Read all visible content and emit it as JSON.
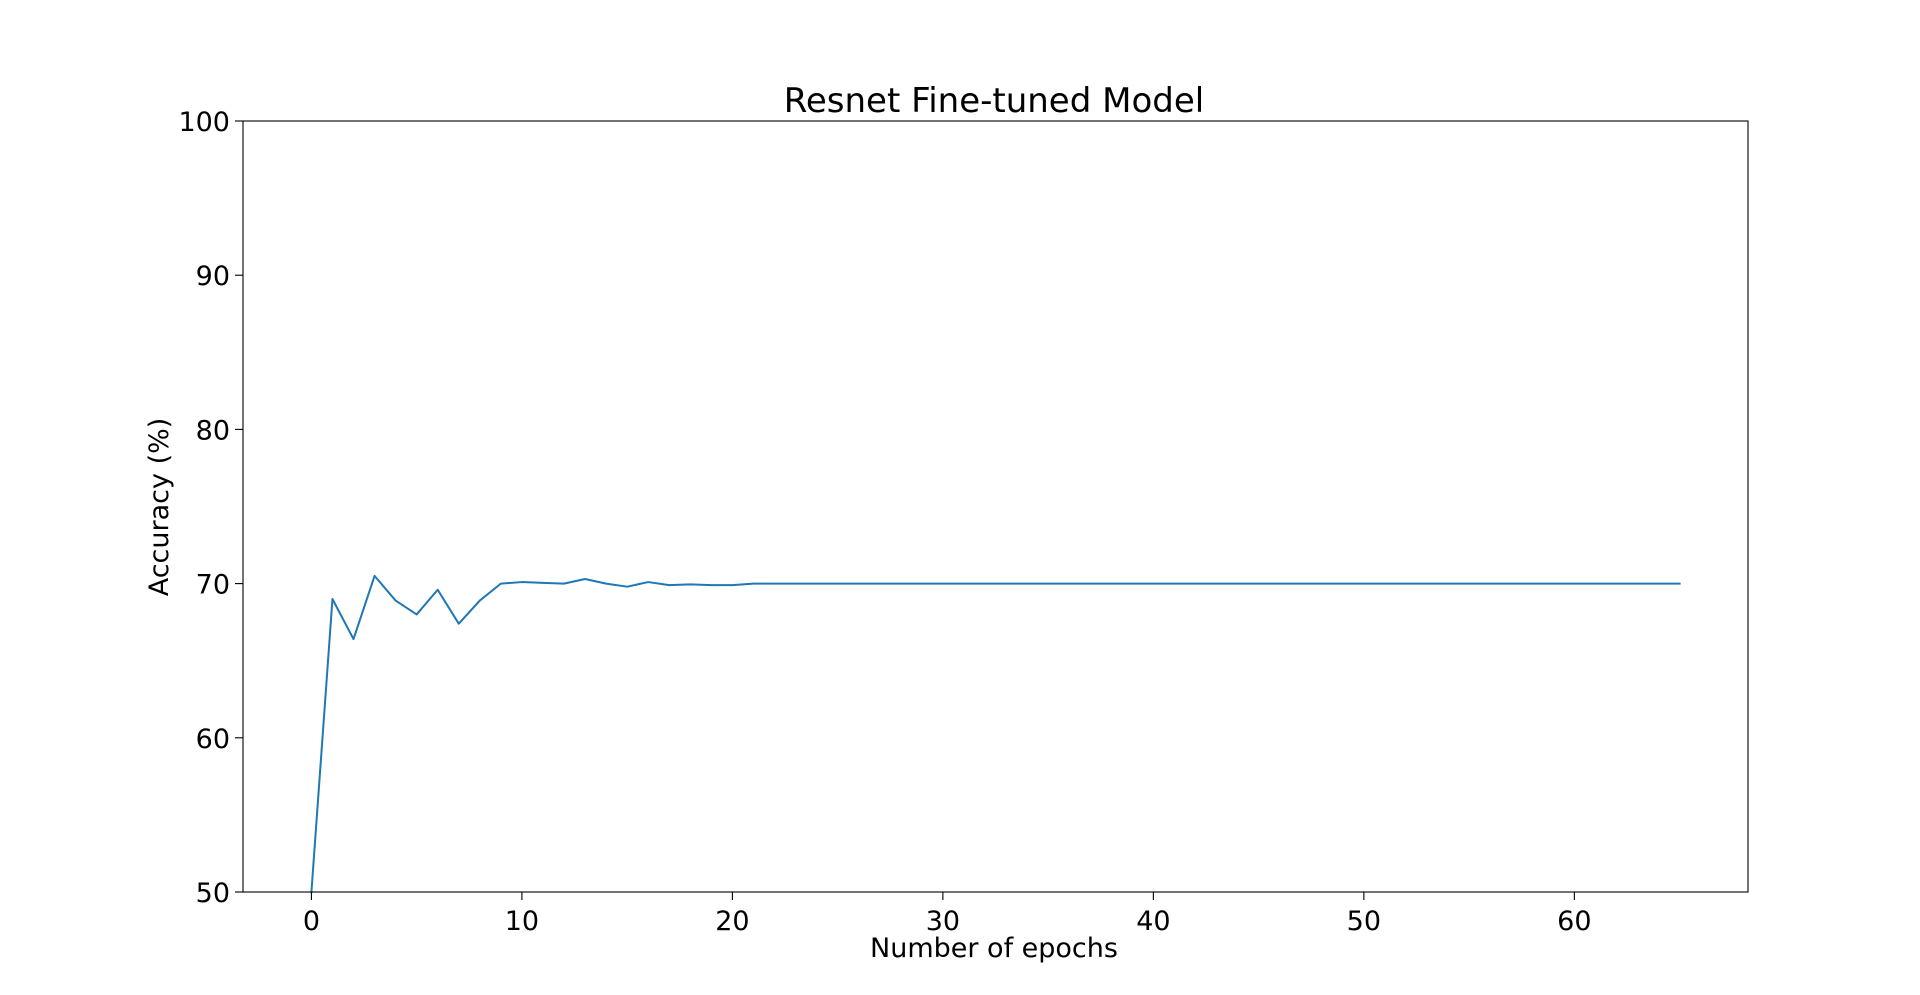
{
  "chart_data": {
    "type": "line",
    "title": "Resnet Fine-tuned Model",
    "xlabel": "Number of epochs",
    "ylabel": "Accuracy (%)",
    "xlim": [
      -3.25,
      68.25
    ],
    "ylim": [
      50,
      100
    ],
    "xticks": [
      0,
      10,
      20,
      30,
      40,
      50,
      60
    ],
    "yticks": [
      50,
      60,
      70,
      80,
      90,
      100
    ],
    "grid": false,
    "series": [
      {
        "color": "#1f77b4",
        "x": [
          0,
          1,
          2,
          3,
          4,
          5,
          6,
          7,
          8,
          9,
          10,
          11,
          12,
          13,
          14,
          15,
          16,
          17,
          18,
          19,
          20,
          21,
          22,
          23,
          24,
          25,
          26,
          27,
          28,
          29,
          30,
          31,
          32,
          33,
          34,
          35,
          36,
          37,
          38,
          39,
          40,
          41,
          42,
          43,
          44,
          45,
          46,
          47,
          48,
          49,
          50,
          51,
          52,
          53,
          54,
          55,
          56,
          57,
          58,
          59,
          60,
          61,
          62,
          63,
          64,
          65
        ],
        "y": [
          50.0,
          69.0,
          66.4,
          70.5,
          68.9,
          68.0,
          69.6,
          67.4,
          68.9,
          70.0,
          70.1,
          70.05,
          70.0,
          70.3,
          70.0,
          69.8,
          70.1,
          69.9,
          69.95,
          69.9,
          69.9,
          70.0,
          70.0,
          70.0,
          70.0,
          70.0,
          70.0,
          70.0,
          70.0,
          70.0,
          70.0,
          70.0,
          70.0,
          70.0,
          70.0,
          70.0,
          70.0,
          70.0,
          70.0,
          70.0,
          70.0,
          70.0,
          70.0,
          70.0,
          70.0,
          70.0,
          70.0,
          70.0,
          70.0,
          70.0,
          70.0,
          70.0,
          70.0,
          70.0,
          70.0,
          70.0,
          70.0,
          70.0,
          70.0,
          70.0,
          70.0,
          70.0,
          70.0,
          70.0,
          70.0,
          70.0
        ]
      }
    ]
  }
}
